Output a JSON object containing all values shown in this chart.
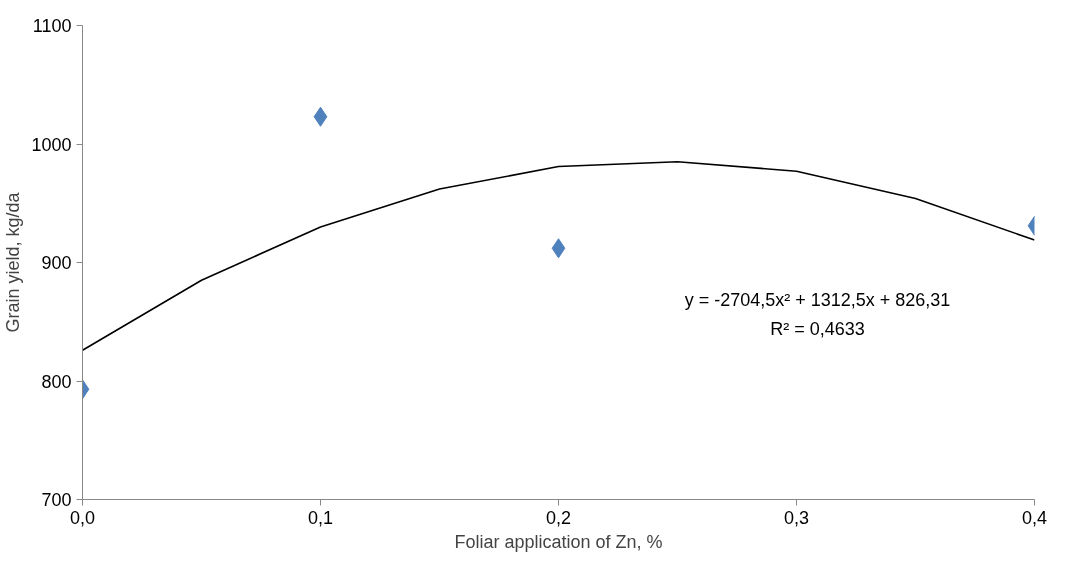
{
  "chart_data": {
    "type": "scatter",
    "xlabel": "Foliar application of Zn, %",
    "ylabel": "Grain yield, kg/da",
    "xlim": [
      0,
      0.4
    ],
    "xticks": [
      {
        "value": 0,
        "label": "0,0"
      },
      {
        "value": 0.1,
        "label": "0,1"
      },
      {
        "value": 0.2,
        "label": "0,2"
      },
      {
        "value": 0.3,
        "label": "0,3"
      },
      {
        "value": 0.4,
        "label": "0,4"
      }
    ],
    "ylim": [
      700,
      1100
    ],
    "yticks": [
      700,
      800,
      900,
      1000,
      1100
    ],
    "grid": false,
    "marker": "diamond",
    "series": [
      {
        "color": "#4f81bd",
        "x": [
          0,
          0.1,
          0.2,
          0.4
        ],
        "values": [
          793,
          1023,
          912,
          931
        ]
      },
      {
        "type": "line",
        "color": "#000000",
        "line_style": "solid",
        "marker": "none",
        "x": [
          0,
          0.05,
          0.1,
          0.15,
          0.2,
          0.25,
          0.3,
          0.35,
          0.4
        ],
        "values": [
          826,
          885,
          930,
          962,
          981,
          985,
          977,
          954,
          919
        ]
      }
    ],
    "annotations": [
      "y = -2704,5x² + 1312,5x + 826,31",
      "R² = 0,4633"
    ]
  }
}
